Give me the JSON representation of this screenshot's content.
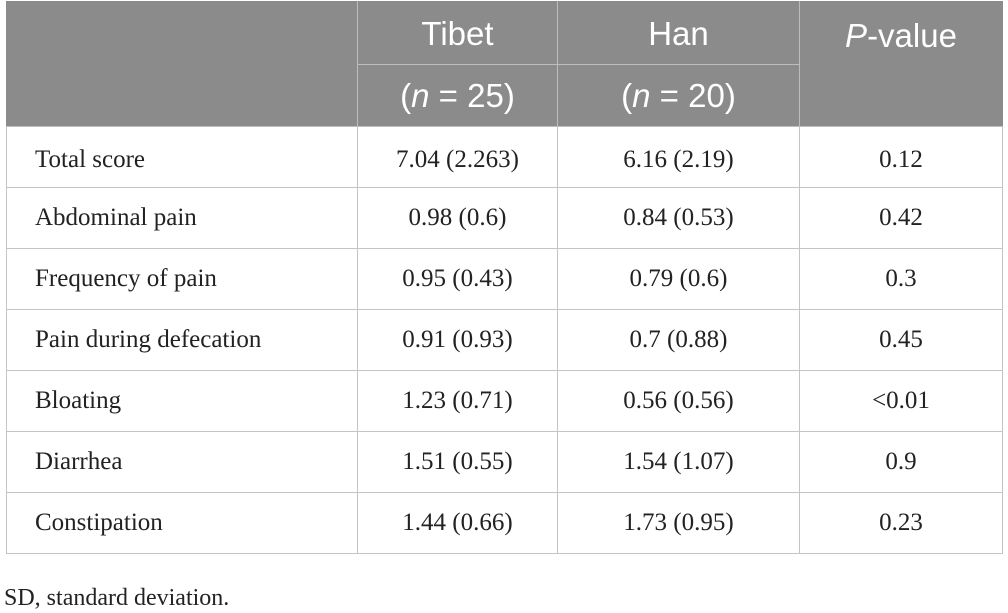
{
  "header": {
    "col_tibet": {
      "name": "Tibet",
      "n_label": "(",
      "n_var": "n",
      "n_eq": " = 25)"
    },
    "col_han": {
      "name": "Han",
      "n_label": "(",
      "n_var": "n",
      "n_eq": " = 20)"
    },
    "col_p": {
      "p_var": "P",
      "p_rest": "-value"
    }
  },
  "rows": [
    {
      "label": "Total score",
      "tibet": "7.04 (2.263)",
      "han": "6.16 (2.19)",
      "p": "0.12"
    },
    {
      "label": "Abdominal pain",
      "tibet": "0.98 (0.6)",
      "han": "0.84 (0.53)",
      "p": "0.42"
    },
    {
      "label": "Frequency of pain",
      "tibet": "0.95 (0.43)",
      "han": "0.79 (0.6)",
      "p": "0.3"
    },
    {
      "label": "Pain during defecation",
      "tibet": "0.91 (0.93)",
      "han": "0.7 (0.88)",
      "p": "0.45"
    },
    {
      "label": "Bloating",
      "tibet": "1.23 (0.71)",
      "han": "0.56 (0.56)",
      "p": "<0.01"
    },
    {
      "label": "Diarrhea",
      "tibet": "1.51 (0.55)",
      "han": "1.54 (1.07)",
      "p": "0.9"
    },
    {
      "label": "Constipation",
      "tibet": "1.44 (0.66)",
      "han": "1.73 (0.95)",
      "p": "0.23"
    }
  ],
  "footnote": "SD, standard deviation."
}
